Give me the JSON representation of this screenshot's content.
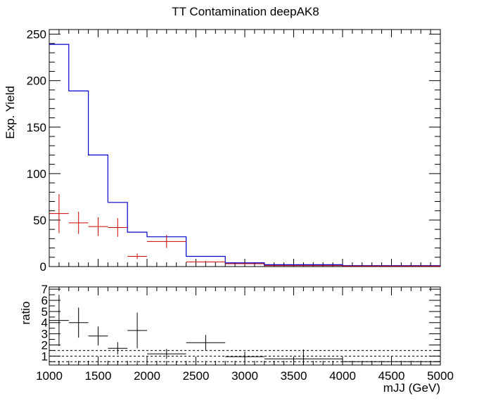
{
  "chart_data": [
    {
      "type": "line",
      "title": "TT Contamination deepAK8",
      "ylabel": "Exp. Yield",
      "xlabel": "",
      "xlim": [
        1000,
        5000
      ],
      "ylim": [
        0,
        255
      ],
      "yticks": [
        0,
        50,
        100,
        150,
        200,
        250
      ],
      "series": [
        {
          "type": "step-histogram",
          "color": "#0000cc",
          "bins": [
            1000,
            1200,
            1400,
            1600,
            1800,
            2000,
            2400,
            2800,
            3200,
            4000,
            5000
          ],
          "values": [
            239,
            189,
            120,
            69,
            37,
            32,
            11,
            4,
            2,
            1
          ]
        },
        {
          "type": "errorbar",
          "color": "#cc0000",
          "points": [
            {
              "x": 1100,
              "xerr": 100,
              "y": 57,
              "yerr": 21
            },
            {
              "x": 1300,
              "xerr": 100,
              "y": 47,
              "yerr": 12
            },
            {
              "x": 1500,
              "xerr": 100,
              "y": 43,
              "yerr": 10
            },
            {
              "x": 1700,
              "xerr": 100,
              "y": 42,
              "yerr": 10
            },
            {
              "x": 1900,
              "xerr": 100,
              "y": 11,
              "yerr": 3
            },
            {
              "x": 2200,
              "xerr": 200,
              "y": 27,
              "yerr": 7
            },
            {
              "x": 2600,
              "xerr": 200,
              "y": 5,
              "yerr": 1
            },
            {
              "x": 3000,
              "xerr": 200,
              "y": 3,
              "yerr": 1
            },
            {
              "x": 3600,
              "xerr": 400,
              "y": 1,
              "yerr": 0.5
            },
            {
              "x": 4500,
              "xerr": 500,
              "y": 0.5,
              "yerr": 0.3
            }
          ]
        }
      ]
    },
    {
      "type": "scatter",
      "title": "",
      "ylabel": "ratio",
      "xlabel": "mJJ (GeV)",
      "xlim": [
        1000,
        5000
      ],
      "ylim": [
        0.2,
        7.2
      ],
      "xticks": [
        1000,
        1500,
        2000,
        2500,
        3000,
        3500,
        4000,
        4500,
        5000
      ],
      "yticks": [
        1,
        2,
        3,
        4,
        5,
        6,
        7
      ],
      "reference_lines": [
        0.5,
        1.0,
        1.5
      ],
      "series": [
        {
          "type": "errorbar",
          "color": "#000000",
          "points": [
            {
              "x": 1100,
              "xerr": 100,
              "y": 4.2,
              "yerr": 2.3
            },
            {
              "x": 1300,
              "xerr": 100,
              "y": 4.0,
              "yerr": 1.35
            },
            {
              "x": 1500,
              "xerr": 100,
              "y": 2.8,
              "yerr": 0.85
            },
            {
              "x": 1700,
              "xerr": 100,
              "y": 1.7,
              "yerr": 0.55
            },
            {
              "x": 1900,
              "xerr": 100,
              "y": 3.3,
              "yerr": 1.6
            },
            {
              "x": 2200,
              "xerr": 200,
              "y": 1.2,
              "yerr": 0.45
            },
            {
              "x": 2600,
              "xerr": 200,
              "y": 2.2,
              "yerr": 0.7
            },
            {
              "x": 3000,
              "xerr": 200,
              "y": 0.95,
              "yerr": 0.45
            },
            {
              "x": 3600,
              "xerr": 400,
              "y": 0.75,
              "yerr": 0.85
            },
            {
              "x": 4500,
              "xerr": 500,
              "y": 0.5,
              "yerr": 0.15
            }
          ]
        }
      ]
    }
  ]
}
